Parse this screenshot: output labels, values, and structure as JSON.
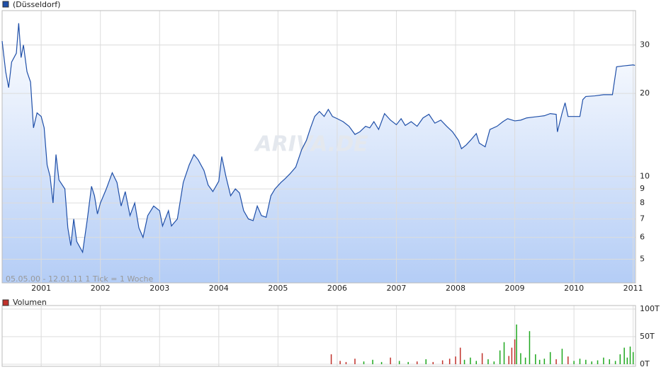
{
  "chart_data": [
    {
      "type": "area",
      "legend": "top-left",
      "log": true,
      "grid": true,
      "note": "05.05.00 - 12.01.11   1 Tick = 1 Woche",
      "watermark": "ARIVA.DE",
      "xlim": [
        2000.34,
        2011.04
      ],
      "xticks": [
        2001,
        2002,
        2003,
        2004,
        2005,
        2006,
        2007,
        2008,
        2009,
        2010,
        2011
      ],
      "ylim": [
        4.1,
        40
      ],
      "yticks": [
        5,
        6,
        7,
        8,
        9,
        10,
        20,
        30
      ],
      "x": [
        2000.34,
        2000.4,
        2000.45,
        2000.5,
        2000.58,
        2000.62,
        2000.66,
        2000.7,
        2000.76,
        2000.82,
        2000.87,
        2000.93,
        2001.0,
        2001.05,
        2001.1,
        2001.15,
        2001.2,
        2001.25,
        2001.3,
        2001.4,
        2001.45,
        2001.5,
        2001.55,
        2001.6,
        2001.7,
        2001.78,
        2001.85,
        2001.9,
        2001.95,
        2002.0,
        2002.1,
        2002.2,
        2002.28,
        2002.35,
        2002.42,
        2002.5,
        2002.58,
        2002.65,
        2002.72,
        2002.8,
        2002.9,
        2003.0,
        2003.05,
        2003.15,
        2003.2,
        2003.3,
        2003.4,
        2003.5,
        2003.58,
        2003.65,
        2003.75,
        2003.82,
        2003.9,
        2004.0,
        2004.05,
        2004.12,
        2004.2,
        2004.28,
        2004.35,
        2004.42,
        2004.5,
        2004.58,
        2004.65,
        2004.72,
        2004.8,
        2004.88,
        2004.95,
        2005.05,
        2005.12,
        2005.2,
        2005.3,
        2005.4,
        2005.48,
        2005.55,
        2005.62,
        2005.7,
        2005.78,
        2005.85,
        2005.92,
        2006.0,
        2006.1,
        2006.2,
        2006.3,
        2006.38,
        2006.48,
        2006.55,
        2006.62,
        2006.7,
        2006.8,
        2006.9,
        2007.0,
        2007.08,
        2007.15,
        2007.25,
        2007.35,
        2007.45,
        2007.55,
        2007.65,
        2007.75,
        2007.85,
        2007.95,
        2008.05,
        2008.1,
        2008.18,
        2008.25,
        2008.35,
        2008.4,
        2008.5,
        2008.58,
        2008.7,
        2008.8,
        2008.88,
        2009.0,
        2009.1,
        2009.2,
        2009.3,
        2009.4,
        2009.5,
        2009.6,
        2009.7,
        2009.72,
        2009.8,
        2009.85,
        2009.9,
        2010.0,
        2010.1,
        2010.15,
        2010.2,
        2010.35,
        2010.5,
        2010.65,
        2010.72,
        2010.85,
        2011.0,
        2011.03
      ],
      "series": [
        {
          "name": "(Düsseldorf)",
          "color": "#1f4fa8",
          "values": [
            31,
            24,
            21,
            26,
            28,
            36,
            27,
            30,
            24,
            22,
            15,
            17,
            16.5,
            15,
            11,
            10,
            8,
            12,
            9.7,
            9,
            6.5,
            5.6,
            7,
            5.8,
            5.3,
            7,
            9.2,
            8.5,
            7.3,
            8,
            9,
            10.3,
            9.5,
            7.8,
            8.8,
            7.2,
            8,
            6.5,
            6,
            7.2,
            7.8,
            7.5,
            6.6,
            7.5,
            6.6,
            7,
            9.5,
            11,
            12,
            11.5,
            10.5,
            9.3,
            8.8,
            9.6,
            11.8,
            10,
            8.5,
            9,
            8.7,
            7.5,
            7,
            6.9,
            7.8,
            7.2,
            7.1,
            8.5,
            9,
            9.5,
            9.8,
            10.2,
            10.8,
            12.5,
            13.5,
            15,
            16.5,
            17.2,
            16.5,
            17.5,
            16.5,
            16.2,
            15.8,
            15.2,
            14.2,
            14.5,
            15.2,
            15,
            15.8,
            14.8,
            16.9,
            16,
            15.4,
            16.2,
            15.3,
            15.8,
            15.2,
            16.3,
            16.8,
            15.6,
            16,
            15.2,
            14.5,
            13.5,
            12.6,
            13,
            13.5,
            14.3,
            13.2,
            12.8,
            14.8,
            15.2,
            15.8,
            16.2,
            15.9,
            16,
            16.3,
            16.4,
            16.5,
            16.6,
            16.9,
            16.8,
            14.5,
            17,
            18.5,
            16.5,
            16.5,
            16.5,
            19,
            19.5,
            19.6,
            19.8,
            19.8,
            25,
            25.2,
            25.4,
            25.3
          ]
        }
      ]
    },
    {
      "type": "bar",
      "legend": "top-left",
      "grid": true,
      "up_color": "#1fa81f",
      "down_color": "#c0302a",
      "xlim": [
        2000.34,
        2011.04
      ],
      "xticks": [
        2001,
        2002,
        2003,
        2004,
        2005,
        2006,
        2007,
        2008,
        2009,
        2010,
        2011
      ],
      "ylim": [
        0,
        100000
      ],
      "yticks": [
        {
          "value": 0,
          "label": "0T"
        },
        {
          "value": 50000,
          "label": "50T"
        },
        {
          "value": 100000,
          "label": "100T"
        }
      ],
      "x": [
        2005.9,
        2006.05,
        2006.15,
        2006.3,
        2006.45,
        2006.6,
        2006.75,
        2006.9,
        2007.05,
        2007.2,
        2007.35,
        2007.5,
        2007.62,
        2007.78,
        2007.9,
        2008.0,
        2008.08,
        2008.15,
        2008.25,
        2008.35,
        2008.45,
        2008.55,
        2008.65,
        2008.75,
        2008.82,
        2008.9,
        2008.95,
        2009.0,
        2009.03,
        2009.1,
        2009.18,
        2009.25,
        2009.35,
        2009.42,
        2009.5,
        2009.6,
        2009.7,
        2009.8,
        2009.9,
        2010.0,
        2010.1,
        2010.2,
        2010.3,
        2010.4,
        2010.5,
        2010.6,
        2010.7,
        2010.78,
        2010.85,
        2010.9,
        2010.95,
        2011.0
      ],
      "series": [
        {
          "name": "Volumen",
          "color": "#c0302a",
          "values": [
            18000,
            6000,
            4000,
            10000,
            5000,
            8000,
            4000,
            12000,
            6000,
            4000,
            5000,
            9000,
            4000,
            7000,
            10000,
            14000,
            30000,
            8000,
            12000,
            6000,
            20000,
            9000,
            5000,
            25000,
            40000,
            15000,
            30000,
            45000,
            72000,
            20000,
            12000,
            60000,
            18000,
            8000,
            10000,
            22000,
            9000,
            28000,
            14000,
            6000,
            10000,
            8000,
            5000,
            7000,
            12000,
            9000,
            6000,
            18000,
            30000,
            12000,
            32000,
            22000
          ]
        }
      ]
    }
  ]
}
